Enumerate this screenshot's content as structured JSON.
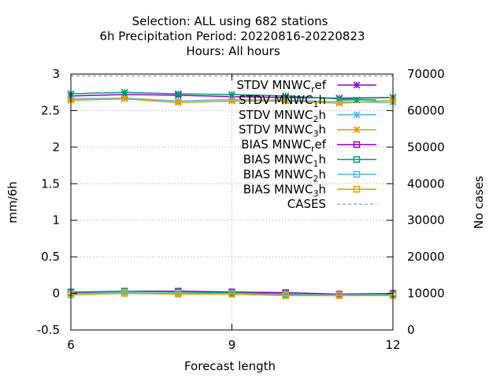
{
  "chart_data": {
    "type": "line",
    "title_lines": [
      "Selection: ALL using   682 stations",
      "6h Precipitation   Period: 20220816-20220823",
      "Hours:  All hours"
    ],
    "xlabel": "Forecast length",
    "ylabel": "mm/6h",
    "y2label": "No cases",
    "xlim": [
      6,
      12
    ],
    "ylim": [
      -0.5,
      3
    ],
    "y2lim": [
      0,
      70000
    ],
    "xticks": [
      "6",
      "9",
      "12"
    ],
    "yticks": [
      "-0.5",
      "0",
      "0.5",
      "1",
      "1.5",
      "2",
      "2.5",
      "3"
    ],
    "y2ticks": [
      "0",
      "10000",
      "20000",
      "30000",
      "40000",
      "50000",
      "60000",
      "70000"
    ],
    "grid": true,
    "legend_position": "top-right",
    "x": [
      6,
      7,
      8,
      9,
      10,
      11,
      12
    ],
    "series": [
      {
        "name": "STDV MNWC",
        "sub": "r",
        "suffix": "ef",
        "marker": "star",
        "dash": "solid",
        "color": "#9400d3",
        "axis": "y",
        "values": [
          2.7,
          2.72,
          2.71,
          2.69,
          2.68,
          2.67,
          2.68
        ]
      },
      {
        "name": "STDV MNWC",
        "sub": "1",
        "suffix": "h",
        "marker": "star",
        "dash": "solid",
        "color": "#009e73",
        "axis": "y",
        "values": [
          2.73,
          2.75,
          2.73,
          2.72,
          2.7,
          2.66,
          2.68
        ]
      },
      {
        "name": "STDV MNWC",
        "sub": "2",
        "suffix": "h",
        "marker": "star",
        "dash": "solid",
        "color": "#56b4e9",
        "axis": "y",
        "values": [
          2.66,
          2.67,
          2.63,
          2.65,
          2.64,
          2.62,
          2.61
        ]
      },
      {
        "name": "STDV MNWC",
        "sub": "3",
        "suffix": "h",
        "marker": "star",
        "dash": "solid",
        "color": "#e69f00",
        "axis": "y",
        "values": [
          2.64,
          2.66,
          2.61,
          2.63,
          2.63,
          2.6,
          2.64
        ]
      },
      {
        "name": "BIAS MNWC",
        "sub": "r",
        "suffix": "ef",
        "marker": "square",
        "dash": "solid",
        "color": "#9400d3",
        "axis": "y",
        "values": [
          0.01,
          0.03,
          0.03,
          0.02,
          0.01,
          -0.01,
          0.0
        ]
      },
      {
        "name": "BIAS MNWC",
        "sub": "1",
        "suffix": "h",
        "marker": "square",
        "dash": "solid",
        "color": "#009e73",
        "axis": "y",
        "values": [
          0.02,
          0.03,
          0.02,
          0.01,
          -0.01,
          -0.02,
          -0.01
        ]
      },
      {
        "name": "BIAS MNWC",
        "sub": "2",
        "suffix": "h",
        "marker": "square",
        "dash": "solid",
        "color": "#56b4e9",
        "axis": "y",
        "values": [
          0.0,
          0.01,
          0.0,
          0.0,
          -0.02,
          -0.02,
          -0.02
        ]
      },
      {
        "name": "BIAS MNWC",
        "sub": "3",
        "suffix": "h",
        "marker": "square",
        "dash": "solid",
        "color": "#e69f00",
        "axis": "y",
        "values": [
          -0.02,
          0.0,
          -0.01,
          -0.01,
          -0.03,
          -0.03,
          -0.03
        ]
      },
      {
        "name": "CASES",
        "sub": "",
        "suffix": "",
        "marker": "none",
        "dash": "dashed",
        "color": "#8c8c8c",
        "axis": "y2",
        "values": [
          69500,
          69500,
          69500,
          69500,
          69500,
          69500,
          69500
        ]
      }
    ]
  }
}
